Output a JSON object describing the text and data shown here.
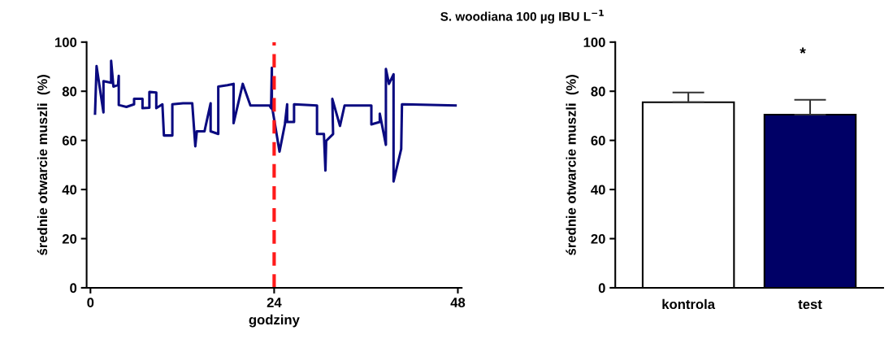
{
  "chart_data": [
    {
      "type": "line",
      "title": "S. woodiana 100 µg IBU L$^{−1}$",
      "xlabel": "godziny",
      "ylabel": "średnie otwarcie muszli  (%)",
      "xlim": [
        -0.5,
        48.5
      ],
      "xticks": [
        0,
        24,
        48
      ],
      "ylim": [
        0,
        100
      ],
      "yticks": [
        0,
        20,
        40,
        60,
        80,
        100
      ],
      "grid": false,
      "legend": false,
      "series": [
        {
          "color": "#0a0a80",
          "x": [
            0.6,
            0.8,
            1.7,
            1.7,
            2.7,
            2.7,
            3.0,
            3.6,
            3.7,
            3.7,
            4.7,
            5.7,
            5.7,
            6.8,
            6.8,
            7.7,
            7.7,
            8.6,
            8.6,
            9.4,
            9.6,
            10.7,
            10.7,
            12.1,
            13.3,
            13.7,
            13.9,
            14.9,
            15.7,
            15.7,
            16.7,
            16.7,
            17.9,
            18.7,
            18.7,
            19.9,
            20.9,
            23.4,
            23.6,
            23.7,
            23.7,
            24.7,
            25.4,
            25.7,
            25.7,
            26.6,
            26.6,
            29.6,
            29.6,
            30.5,
            30.7,
            30.8,
            31.7,
            31.6,
            32.6,
            33.2,
            36.7,
            36.7,
            37.8,
            37.8,
            38.6,
            38.6,
            39.0,
            39.6,
            39.6,
            40.6,
            40.7,
            47.7
          ],
          "values": [
            70.9,
            90.2,
            71.4,
            84.1,
            83.5,
            92.4,
            81.9,
            82.5,
            86.3,
            74.4,
            73.6,
            74.7,
            76.9,
            76.9,
            73.1,
            73.3,
            79.7,
            79.5,
            73.1,
            74.7,
            62.0,
            62.0,
            74.7,
            75.1,
            75.1,
            57.6,
            63.7,
            63.7,
            75.1,
            63.7,
            62.6,
            81.9,
            82.5,
            83.0,
            67.0,
            83.0,
            74.2,
            74.2,
            73.1,
            89.6,
            74.2,
            55.4,
            66.5,
            74.7,
            67.5,
            67.5,
            74.7,
            74.2,
            62.6,
            62.6,
            47.7,
            59.8,
            62.6,
            76.9,
            65.9,
            74.2,
            74.2,
            66.5,
            67.5,
            70.9,
            58.2,
            89.1,
            83.0,
            86.9,
            43.3,
            56.5,
            74.7,
            74.2
          ]
        }
      ],
      "ref_lines": [
        {
          "axis": "x",
          "value": 24,
          "color": "#ff1a1a",
          "line_style": "dashed"
        }
      ]
    },
    {
      "type": "bar",
      "ylabel": "średnie otwarcie muszli  (%)",
      "categories": [
        "kontrola",
        "test"
      ],
      "values": [
        75.5,
        70.5
      ],
      "errors": [
        4,
        6
      ],
      "colors": [
        "#ffffff",
        "#000066"
      ],
      "ylim": [
        0,
        100
      ],
      "yticks": [
        0,
        20,
        40,
        60,
        80,
        100
      ],
      "grid": false,
      "legend": false,
      "annotations": [
        "*"
      ]
    }
  ]
}
